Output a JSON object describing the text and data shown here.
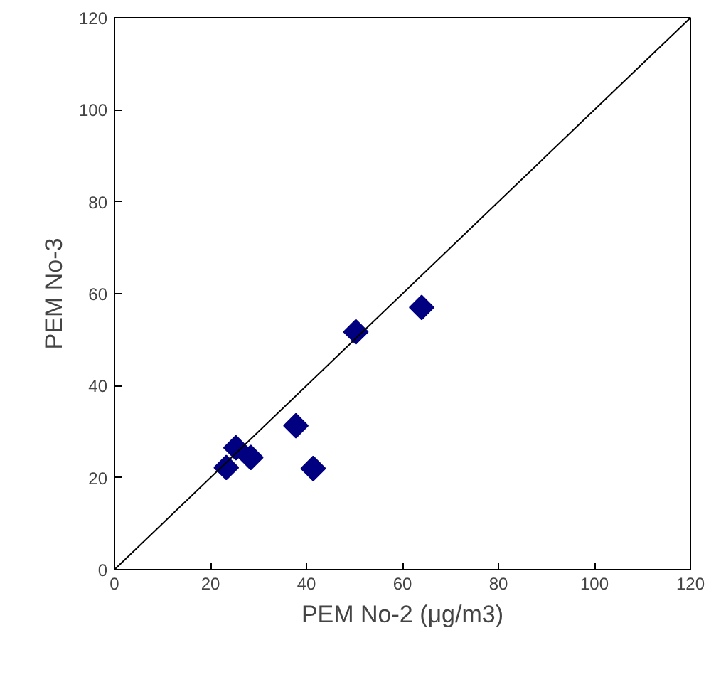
{
  "chart_data": {
    "type": "scatter",
    "xlabel": "PEM No-2 (μg/m3)",
    "ylabel": "PEM No-3",
    "xlim": [
      0,
      120
    ],
    "ylim": [
      0,
      120
    ],
    "xticks": [
      0,
      20,
      40,
      60,
      80,
      100,
      120
    ],
    "yticks": [
      0,
      20,
      40,
      60,
      80,
      100,
      120
    ],
    "grid": false,
    "series": [
      {
        "marker": "diamond",
        "color": "#000080",
        "x": [
          23.3,
          25.3,
          28.4,
          37.8,
          41.4,
          50.3,
          64.0
        ],
        "values": [
          22.2,
          26.5,
          24.4,
          31.3,
          22.0,
          51.7,
          57.0
        ]
      },
      {
        "type": "line",
        "color": "#000000",
        "x": [
          0,
          120
        ],
        "values": [
          0,
          120
        ]
      }
    ]
  }
}
